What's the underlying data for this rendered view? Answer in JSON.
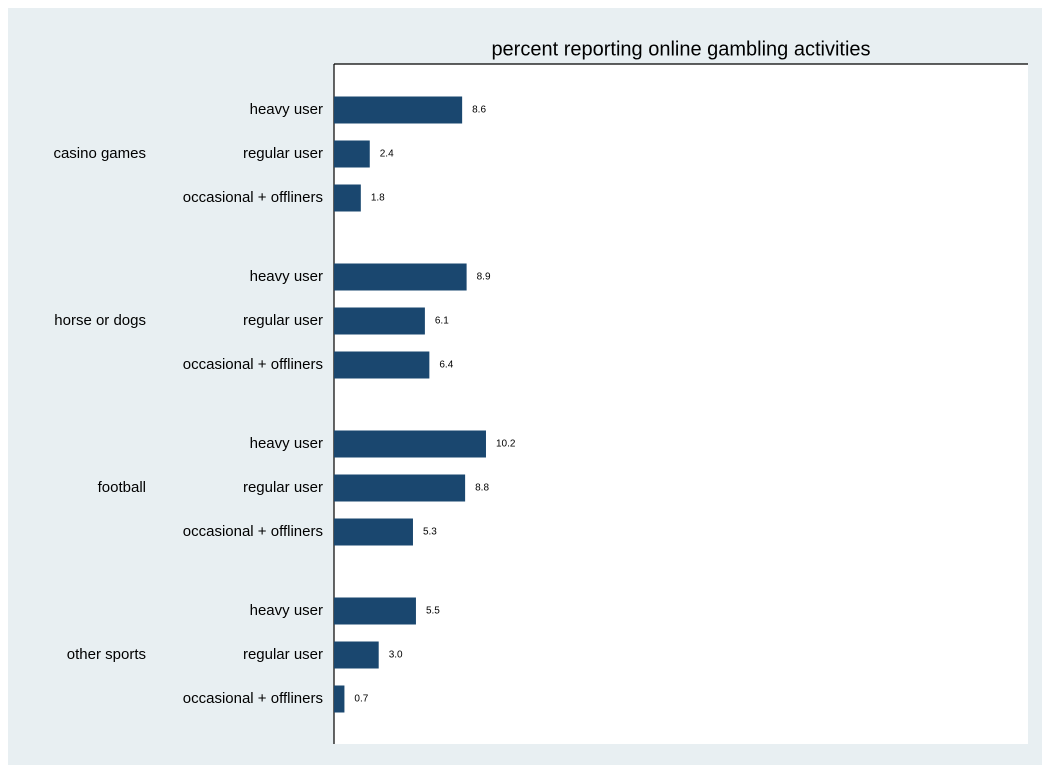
{
  "chart_data": {
    "type": "bar",
    "orientation": "horizontal",
    "title": "percent reporting online gambling activities",
    "categories": [
      "heavy user",
      "regular user",
      "occasional + offliners"
    ],
    "series": [
      {
        "name": "casino games",
        "color": "#1a476f",
        "values": [
          8.6,
          2.4,
          1.8
        ],
        "value_labels": [
          "8.6",
          "2.4",
          "1.8"
        ]
      },
      {
        "name": "horse or dogs",
        "color": "#1a476f",
        "values": [
          8.9,
          6.1,
          6.4
        ],
        "value_labels": [
          "8.9",
          "6.1",
          "6.4"
        ]
      },
      {
        "name": "football",
        "color": "#1a476f",
        "values": [
          10.2,
          8.8,
          5.3
        ],
        "value_labels": [
          "10.2",
          "8.8",
          "5.3"
        ]
      },
      {
        "name": "other sports",
        "color": "#1a476f",
        "values": [
          5.5,
          3.0,
          0.7
        ],
        "value_labels": [
          "5.5",
          "3.0",
          "0.7"
        ]
      }
    ]
  }
}
